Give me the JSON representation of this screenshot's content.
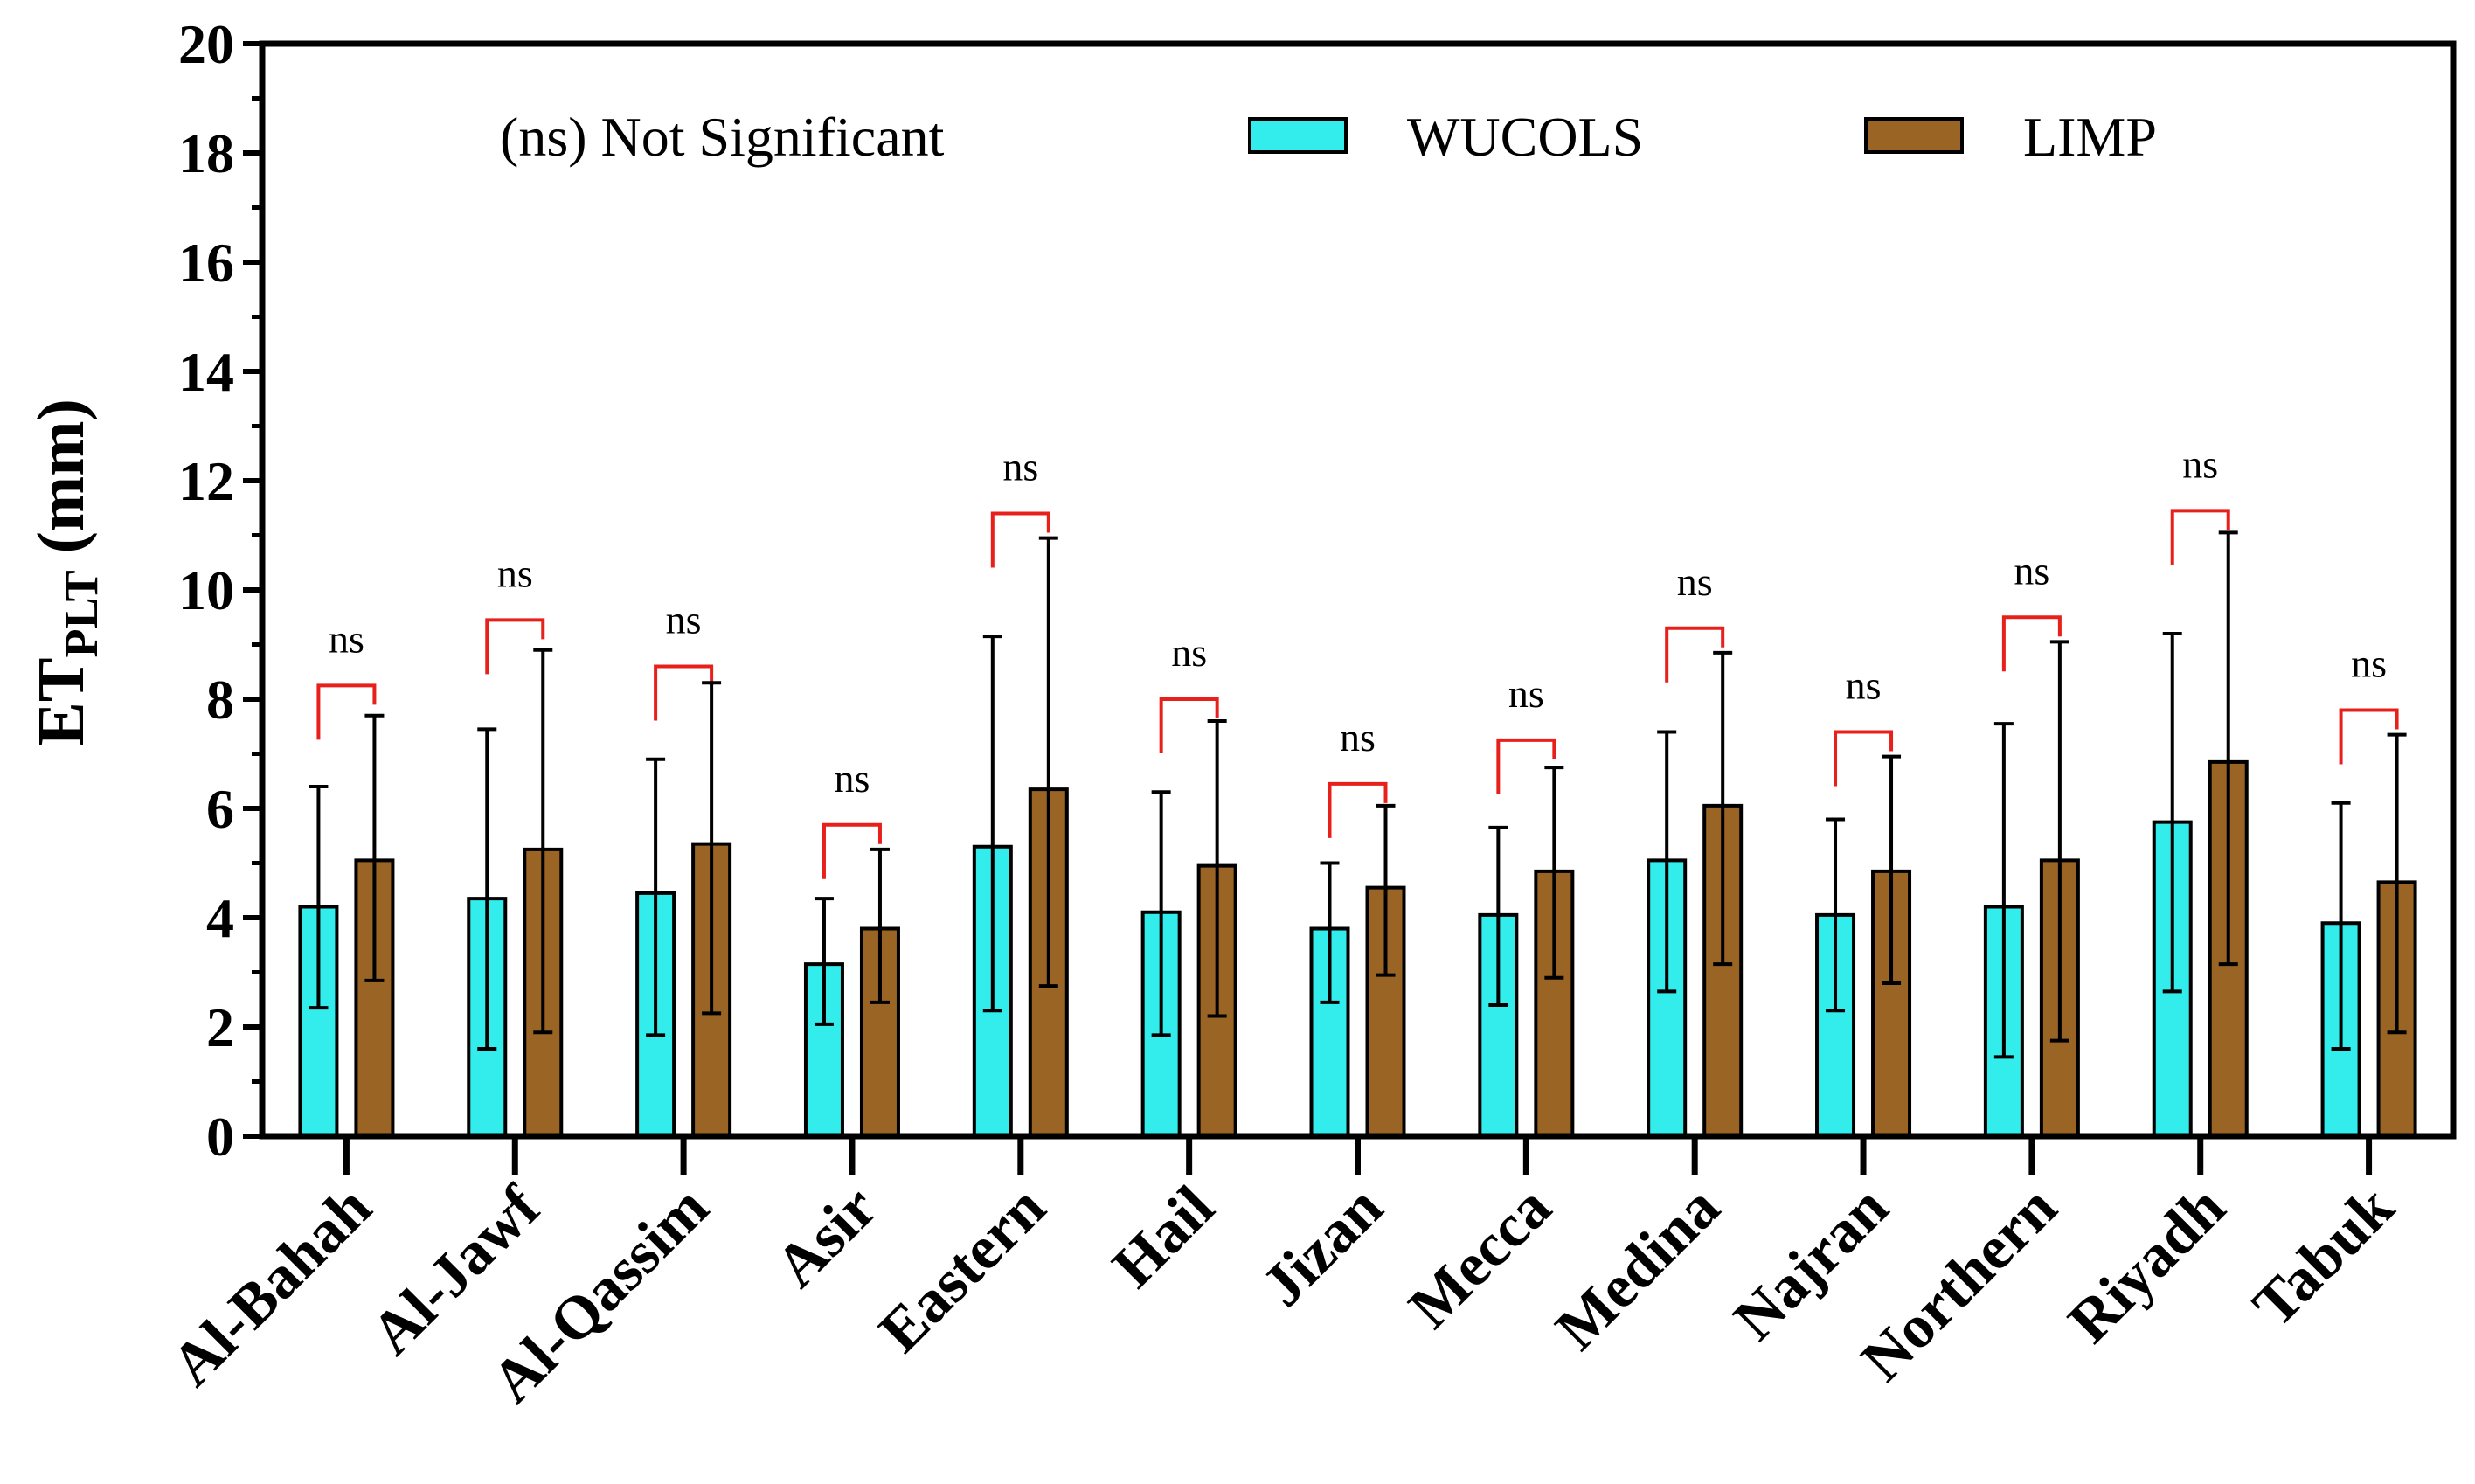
{
  "chart_data": {
    "type": "bar",
    "title": "",
    "xlabel": "",
    "ylabel": {
      "main": "ET",
      "sub": "PLT",
      "unit": " (mm)"
    },
    "ylim": [
      0,
      20
    ],
    "y_ticks": [
      "0",
      "2",
      "4",
      "6",
      "8",
      "10",
      "12",
      "14",
      "16",
      "18",
      "20"
    ],
    "y_tick_values": [
      0,
      2,
      4,
      6,
      8,
      10,
      12,
      14,
      16,
      18,
      20
    ],
    "categories": [
      "Al-Bahah",
      "Al-Jawf",
      "Al-Qassim",
      "Asir",
      "Eastern",
      "Hail",
      "Jizan",
      "Mecca",
      "Medina",
      "Najran",
      "Northern",
      "Riyadh",
      "Tabuk"
    ],
    "series": [
      {
        "name": "WUCOLS",
        "color": "#33ecec",
        "values": [
          4.2,
          4.35,
          4.45,
          3.15,
          5.3,
          4.1,
          3.8,
          4.05,
          5.05,
          4.05,
          4.2,
          5.75,
          3.9
        ],
        "error_low": [
          2.35,
          1.6,
          1.85,
          2.05,
          2.3,
          1.85,
          2.45,
          2.4,
          2.65,
          2.3,
          1.45,
          2.65,
          1.6
        ],
        "error_high": [
          6.4,
          7.45,
          6.9,
          4.35,
          9.15,
          6.3,
          5.0,
          5.65,
          7.4,
          5.8,
          7.55,
          9.2,
          6.1
        ]
      },
      {
        "name": "LIMP",
        "color": "#9a6424",
        "values": [
          5.05,
          5.25,
          5.35,
          3.8,
          6.35,
          4.95,
          4.55,
          4.85,
          6.05,
          4.85,
          5.05,
          6.85,
          4.65
        ],
        "error_low": [
          2.85,
          1.9,
          2.25,
          2.45,
          2.75,
          2.2,
          2.95,
          2.9,
          3.15,
          2.8,
          1.75,
          3.15,
          1.9
        ],
        "error_high": [
          7.7,
          8.9,
          8.3,
          5.25,
          10.95,
          7.6,
          6.05,
          6.75,
          8.85,
          6.95,
          9.05,
          11.05,
          7.35
        ]
      }
    ],
    "significance": {
      "label": "ns",
      "bracket_color": "#e8201c",
      "bracket_tops": [
        8.25,
        9.45,
        8.6,
        5.7,
        11.4,
        8.0,
        6.45,
        7.25,
        9.3,
        7.4,
        9.5,
        11.45,
        7.8
      ]
    },
    "legend": {
      "note": "(ns) Not Significant",
      "position": "top",
      "entries": [
        "WUCOLS",
        "LIMP"
      ]
    }
  }
}
